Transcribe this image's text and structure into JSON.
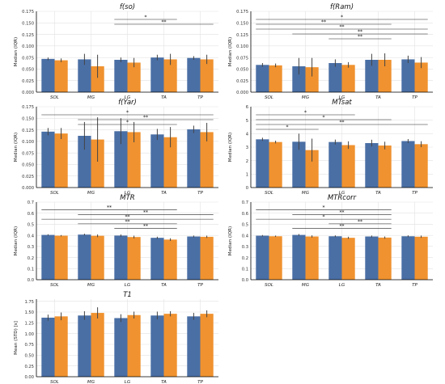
{
  "colors": {
    "blue": "#4a6fa5",
    "orange": "#f0922f",
    "err": "#444444",
    "grid": "#e2e2e2"
  },
  "chart_data": [
    {
      "type": "bar",
      "title": "f(so)",
      "ylabel": "Median (IQR)",
      "categories": [
        "SOL",
        "MG",
        "LG",
        "TA",
        "TP"
      ],
      "ylim": [
        0,
        0.175
      ],
      "yticks": [
        "0.000",
        "0.025",
        "0.050",
        "0.075",
        "0.100",
        "0.125",
        "0.150",
        "0.175"
      ],
      "series": [
        {
          "values": [
            0.072,
            0.071,
            0.07,
            0.075,
            0.074
          ],
          "err": [
            0.003,
            0.012,
            0.005,
            0.006,
            0.004
          ]
        },
        {
          "values": [
            0.069,
            0.056,
            0.064,
            0.071,
            0.071
          ],
          "err": [
            0.004,
            0.025,
            0.01,
            0.012,
            0.01
          ]
        }
      ],
      "brackets": [
        {
          "from": 2,
          "to": 3,
          "label": "*"
        },
        {
          "from": 2,
          "to": 4,
          "label": "**"
        }
      ]
    },
    {
      "type": "bar",
      "title": "f(Ram)",
      "ylabel": "Median (IQR)",
      "categories": [
        "SOL",
        "MG",
        "LG",
        "TA",
        "TP"
      ],
      "ylim": [
        0,
        0.175
      ],
      "yticks": [
        "0.000",
        "0.025",
        "0.050",
        "0.075",
        "0.100",
        "0.125",
        "0.150",
        "0.175"
      ],
      "series": [
        {
          "values": [
            0.059,
            0.056,
            0.063,
            0.07,
            0.071
          ],
          "err": [
            0.004,
            0.018,
            0.008,
            0.013,
            0.008
          ]
        },
        {
          "values": [
            0.058,
            0.054,
            0.059,
            0.07,
            0.064
          ],
          "err": [
            0.004,
            0.02,
            0.006,
            0.014,
            0.012
          ]
        }
      ],
      "brackets": [
        {
          "from": 0,
          "to": 4,
          "label": "*"
        },
        {
          "from": 0,
          "to": 3,
          "label": "**"
        },
        {
          "from": 0,
          "to": 4,
          "label": "**"
        },
        {
          "from": 1,
          "to": 4,
          "label": "**"
        },
        {
          "from": 2,
          "to": 3,
          "label": "**"
        }
      ]
    },
    {
      "type": "bar",
      "title": "f(Yar)",
      "ylabel": "Median (IQR)",
      "categories": [
        "SOL",
        "MG",
        "LG",
        "TA",
        "TP"
      ],
      "ylim": [
        0,
        0.175
      ],
      "yticks": [
        "0.000",
        "0.025",
        "0.050",
        "0.075",
        "0.100",
        "0.125",
        "0.150",
        "0.175"
      ],
      "series": [
        {
          "values": [
            0.121,
            0.112,
            0.122,
            0.115,
            0.126
          ],
          "err": [
            0.008,
            0.03,
            0.028,
            0.012,
            0.008
          ]
        },
        {
          "values": [
            0.117,
            0.104,
            0.12,
            0.109,
            0.12
          ],
          "err": [
            0.012,
            0.048,
            0.022,
            0.022,
            0.02
          ]
        }
      ],
      "brackets": [
        {
          "from": 0,
          "to": 4,
          "label": "*"
        },
        {
          "from": 1,
          "to": 4,
          "label": "**"
        },
        {
          "from": 1,
          "to": 3,
          "label": "*"
        }
      ]
    },
    {
      "type": "bar",
      "title": "MTsat",
      "ylabel": "Median (IQR)",
      "categories": [
        "SOL",
        "MG",
        "LG",
        "TA",
        "TP"
      ],
      "ylim": [
        0,
        6
      ],
      "yticks": [
        "0",
        "1",
        "2",
        "3",
        "4",
        "5",
        "6"
      ],
      "series": [
        {
          "values": [
            3.58,
            3.4,
            3.38,
            3.3,
            3.45
          ],
          "err": [
            0.12,
            0.6,
            0.18,
            0.25,
            0.15
          ]
        },
        {
          "values": [
            3.38,
            2.78,
            3.15,
            3.12,
            3.22
          ],
          "err": [
            0.1,
            0.85,
            0.28,
            0.28,
            0.22
          ]
        }
      ],
      "brackets": [
        {
          "from": 0,
          "to": 2,
          "label": "*"
        },
        {
          "from": 0,
          "to": 3,
          "label": "*"
        },
        {
          "from": 0,
          "to": 4,
          "label": "**"
        },
        {
          "from": 0,
          "to": 1,
          "label": "*"
        }
      ]
    },
    {
      "type": "bar",
      "title": "MTR",
      "ylabel": "Median (IQR)",
      "categories": [
        "SOL",
        "MG",
        "LG",
        "TA",
        "TP"
      ],
      "ylim": [
        0,
        0.7
      ],
      "yticks": [
        "0.0",
        "0.1",
        "0.2",
        "0.3",
        "0.4",
        "0.5",
        "0.6",
        "0.7"
      ],
      "series": [
        {
          "values": [
            0.404,
            0.407,
            0.398,
            0.378,
            0.39
          ],
          "err": [
            0.006,
            0.008,
            0.01,
            0.01,
            0.008
          ]
        },
        {
          "values": [
            0.397,
            0.396,
            0.385,
            0.362,
            0.387
          ],
          "err": [
            0.006,
            0.012,
            0.012,
            0.012,
            0.01
          ]
        }
      ],
      "brackets": [
        {
          "from": 0,
          "to": 3,
          "label": "**"
        },
        {
          "from": 1,
          "to": 4,
          "label": "**"
        },
        {
          "from": 0,
          "to": 4,
          "label": "**"
        },
        {
          "from": 1,
          "to": 3,
          "label": "**"
        },
        {
          "from": 2,
          "to": 3,
          "label": "**"
        }
      ]
    },
    {
      "type": "bar",
      "title": "MTRcorr",
      "ylabel": "Median (IQR)",
      "categories": [
        "SOL",
        "MG",
        "LG",
        "TA",
        "TP"
      ],
      "ylim": [
        0,
        0.7
      ],
      "yticks": [
        "0.0",
        "0.1",
        "0.2",
        "0.3",
        "0.4",
        "0.5",
        "0.6",
        "0.7"
      ],
      "series": [
        {
          "values": [
            0.397,
            0.404,
            0.392,
            0.39,
            0.392
          ],
          "err": [
            0.006,
            0.008,
            0.008,
            0.008,
            0.008
          ]
        },
        {
          "values": [
            0.392,
            0.39,
            0.378,
            0.38,
            0.388
          ],
          "err": [
            0.006,
            0.01,
            0.01,
            0.01,
            0.01
          ]
        }
      ],
      "brackets": [
        {
          "from": 0,
          "to": 3,
          "label": "*"
        },
        {
          "from": 1,
          "to": 3,
          "label": "**"
        },
        {
          "from": 0,
          "to": 3,
          "label": "*"
        },
        {
          "from": 2,
          "to": 3,
          "label": "**"
        },
        {
          "from": 1,
          "to": 3,
          "label": "**"
        }
      ]
    },
    {
      "type": "bar",
      "title": "T1",
      "ylabel": "Mean (STD) [s]",
      "categories": [
        "SOL",
        "MG",
        "LG",
        "TA",
        "TP"
      ],
      "ylim": [
        0,
        1.8
      ],
      "yticks": [
        "0.00",
        "0.25",
        "0.50",
        "0.75",
        "1.00",
        "1.25",
        "1.50",
        "1.75"
      ],
      "series": [
        {
          "values": [
            1.37,
            1.42,
            1.36,
            1.42,
            1.4
          ],
          "err": [
            0.07,
            0.1,
            0.09,
            0.09,
            0.08
          ]
        },
        {
          "values": [
            1.4,
            1.48,
            1.43,
            1.46,
            1.46
          ],
          "err": [
            0.09,
            0.13,
            0.08,
            0.06,
            0.08
          ]
        }
      ],
      "brackets": []
    }
  ]
}
